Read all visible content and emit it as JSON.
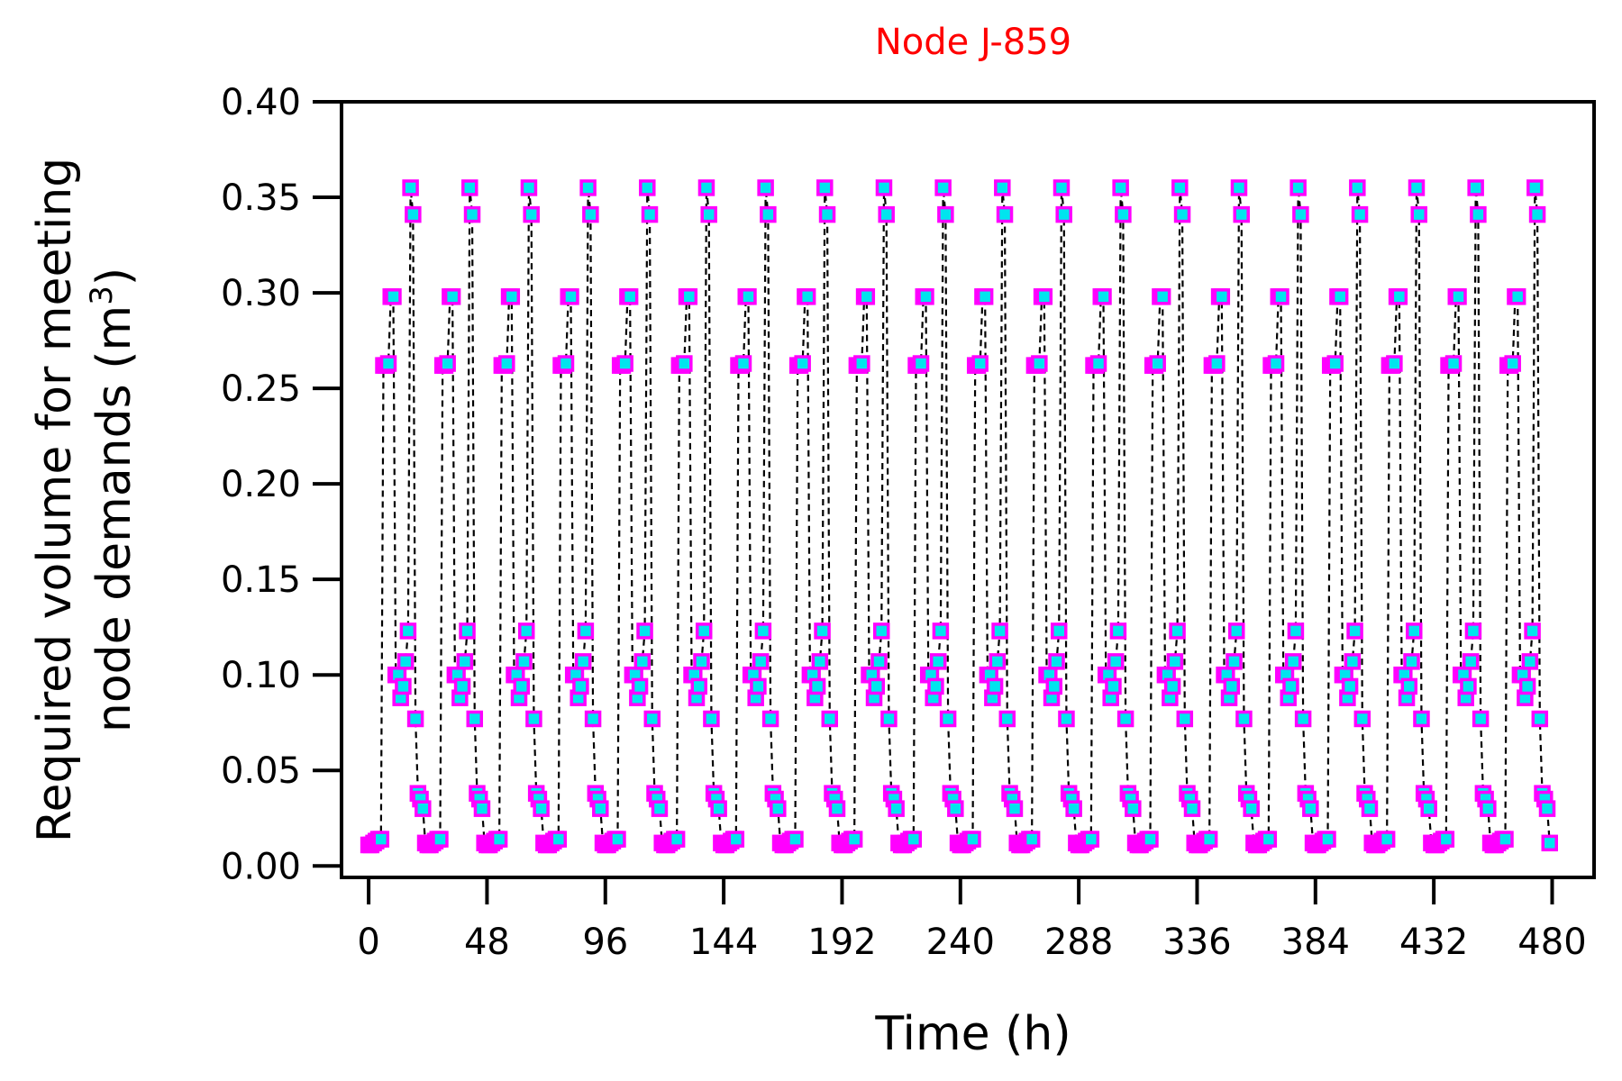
{
  "chart_data": {
    "type": "line",
    "title": "Node J-859",
    "xlabel": "Time (h)",
    "ylabel_line1": "Required volume for meeting",
    "ylabel_line2": "node demands (m",
    "ylabel_sup": "3",
    "ylabel_end": ")",
    "xlim": [
      -11,
      497
    ],
    "ylim": [
      -0.006,
      0.4
    ],
    "xticks": [
      0,
      48,
      96,
      144,
      192,
      240,
      288,
      336,
      384,
      432,
      480
    ],
    "xtick_labels": [
      "0",
      "48",
      "96",
      "144",
      "192",
      "240",
      "288",
      "336",
      "384",
      "432",
      "480"
    ],
    "yticks": [
      0.0,
      0.05,
      0.1,
      0.15,
      0.2,
      0.25,
      0.3,
      0.35,
      0.4
    ],
    "ytick_labels": [
      "0.00",
      "0.05",
      "0.10",
      "0.15",
      "0.20",
      "0.25",
      "0.30",
      "0.35",
      "0.40"
    ],
    "grid": false,
    "legend": "none",
    "period_hours": 24,
    "days": 20,
    "daily_profile_hours": [
      0,
      1,
      2,
      3,
      4,
      5,
      6,
      7,
      8,
      9,
      10,
      11,
      12,
      13,
      14,
      15,
      16,
      17,
      18,
      19,
      20,
      21,
      22,
      23
    ],
    "daily_profile_values": [
      0.011,
      0.011,
      0.012,
      0.013,
      0.014,
      0.014,
      0.262,
      0.262,
      0.263,
      0.298,
      0.298,
      0.1,
      0.1,
      0.088,
      0.094,
      0.107,
      0.123,
      0.355,
      0.341,
      0.077,
      0.038,
      0.035,
      0.03,
      0.012
    ],
    "line_color": "#000000",
    "line_style": "dashed",
    "marker": "square",
    "marker_edge_color": "#ff00ff",
    "marker_face_color": "#00e5ee",
    "title_color": "#ff0000"
  }
}
